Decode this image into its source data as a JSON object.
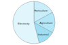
{
  "chart_data": {
    "type": "pie",
    "categories": [
      "Horticulture",
      "Agriculture",
      "Industrial",
      "Electricity"
    ],
    "values": [
      17,
      16,
      13,
      54
    ],
    "colors": [
      "#c9eef9",
      "#b3e6f6",
      "#9edef3",
      "#e0f5fc"
    ]
  }
}
